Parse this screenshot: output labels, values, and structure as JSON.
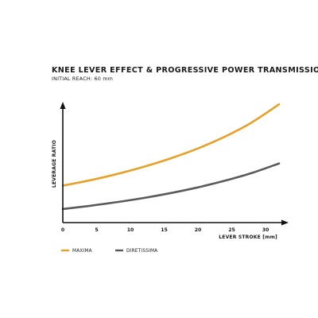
{
  "colors": {
    "maxima": "#e8a128",
    "diretissima": "#5a5a5a",
    "axis": "#111111",
    "background": "#ffffff"
  },
  "chart_data": {
    "type": "line",
    "title": "KNEE LEVER EFFECT & PROGRESSIVE POWER TRANSMISSION",
    "subtitle": "INITIAL REACH: 60 mm",
    "xlabel": "LEVER STROKE [mm]",
    "ylabel": "LEVERAGE RATIO",
    "xlim": [
      0,
      32
    ],
    "x_ticks": [
      "0",
      "5",
      "10",
      "15",
      "20",
      "25",
      "30"
    ],
    "ylim": [
      0,
      10
    ],
    "y_ticks": [],
    "grid": false,
    "legend_position": "bottom-left",
    "series": [
      {
        "name": "MAXIMA",
        "color": "#e8a128",
        "x": [
          0,
          4,
          8,
          12,
          16,
          20,
          24,
          28,
          32
        ],
        "y": [
          3.0,
          3.43,
          3.94,
          4.53,
          5.22,
          6.02,
          6.98,
          8.14,
          9.6
        ]
      },
      {
        "name": "DIRETISSIMA",
        "color": "#5a5a5a",
        "x": [
          0,
          4,
          8,
          12,
          16,
          20,
          24,
          28,
          32
        ],
        "y": [
          1.1,
          1.36,
          1.66,
          2.0,
          2.4,
          2.86,
          3.4,
          4.03,
          4.8
        ]
      }
    ]
  }
}
